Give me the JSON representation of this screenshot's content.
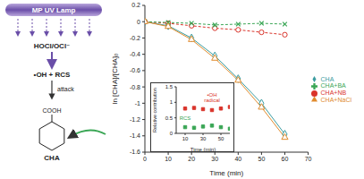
{
  "diagram": {
    "lamp": "MP UV Lamp",
    "oxidant": "HOCl/OCl⁻",
    "radicals": "•OH + RCS",
    "action": "attack",
    "group": "COOH",
    "molecule": "CHA"
  },
  "chart_data": [
    {
      "type": "line",
      "x_label": "Time (min)",
      "y_label": "ln [CHA]/[CHA]₀",
      "x": [
        0,
        10,
        20,
        30,
        40,
        50,
        60
      ],
      "xlim": [
        0,
        70
      ],
      "xticks": [
        0,
        10,
        20,
        30,
        40,
        50,
        60,
        70
      ],
      "ylim": [
        -1.6,
        0.2
      ],
      "yticks": [
        -1.6,
        -1.4,
        -1.2,
        -1,
        -0.8,
        -0.6,
        -0.4,
        -0.2,
        0,
        0.2
      ],
      "grid": false,
      "legend": "right",
      "series": [
        {
          "name": "CHA",
          "color": "#3a9ca0",
          "marker": "diamond",
          "line_style": "solid",
          "values": [
            0,
            -0.05,
            -0.2,
            -0.42,
            -0.7,
            -1.0,
            -1.38
          ]
        },
        {
          "name": "CHA+NB",
          "color": "#d9342b",
          "marker": "circle",
          "line_style": "dashed",
          "values": [
            0,
            -0.02,
            -0.05,
            -0.08,
            -0.1,
            -0.13,
            -0.16
          ]
        },
        {
          "name": "CHA+BA",
          "color": "#3aa655",
          "marker": "cross",
          "line_style": "dashed",
          "values": [
            0,
            -0.01,
            -0.02,
            -0.04,
            -0.03,
            -0.02,
            -0.03
          ]
        },
        {
          "name": "CHA+NaCl",
          "color": "#e08a2c",
          "marker": "triangle",
          "line_style": "solid",
          "values": [
            0,
            -0.06,
            -0.22,
            -0.45,
            -0.72,
            -1.05,
            -1.42
          ]
        }
      ]
    },
    {
      "type": "scatter",
      "x_label": "Time (min)",
      "y_label": "Relative contribution",
      "x": [
        10,
        20,
        30,
        40,
        50,
        60
      ],
      "xlim": [
        0,
        60
      ],
      "xticks": [
        10,
        30,
        50
      ],
      "ylim": [
        0,
        1.5
      ],
      "yticks": [
        0,
        0.5,
        1,
        1.5
      ],
      "grid": false,
      "series": [
        {
          "name": "•OH radical",
          "color": "#d9342b",
          "marker": "square",
          "values": [
            0.8,
            0.82,
            0.78,
            0.75,
            0.8,
            0.85
          ]
        },
        {
          "name": "RCS",
          "color": "#3aa655",
          "marker": "square",
          "values": [
            0.2,
            0.18,
            0.22,
            0.25,
            0.2,
            0.15
          ]
        }
      ]
    }
  ]
}
